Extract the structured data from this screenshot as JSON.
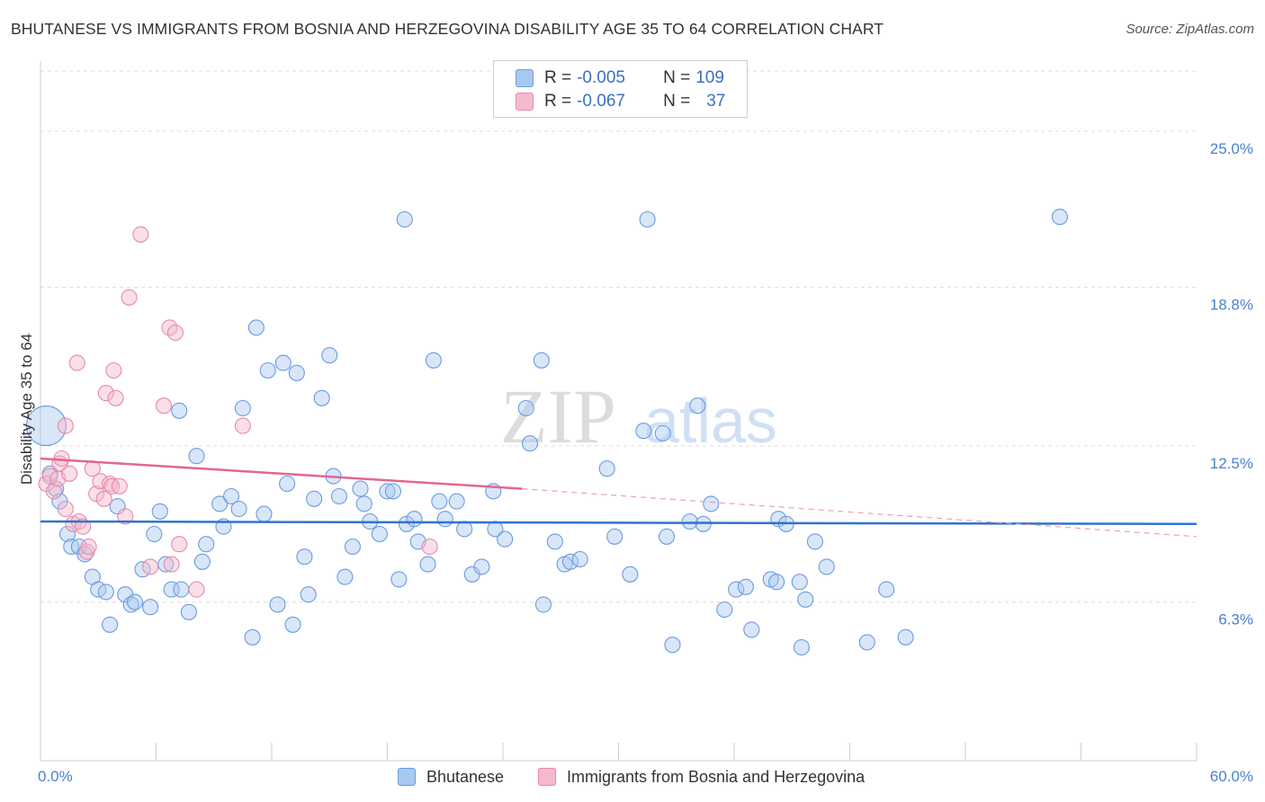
{
  "title": "BHUTANESE VS IMMIGRANTS FROM BOSNIA AND HERZEGOVINA DISABILITY AGE 35 TO 64 CORRELATION CHART",
  "source": "Source: ZipAtlas.com",
  "watermark": {
    "zip": "ZIP",
    "atlas": "atlas"
  },
  "legend": {
    "rows": [
      {
        "r_label": "R = ",
        "r_value": "-0.005",
        "n_label": "N = ",
        "n_value": "109",
        "color": "#a9c8f0",
        "border": "#6b9be0"
      },
      {
        "r_label": "R = ",
        "r_value": "-0.067",
        "n_label": "N = ",
        "n_value": "37",
        "color": "#f5b9cd",
        "border": "#e68aa8"
      }
    ]
  },
  "bottom_legend": [
    {
      "label": "Bhutanese",
      "color": "#a9c8f0",
      "border": "#6b9be0"
    },
    {
      "label": "Immigrants from Bosnia and Herzegovina",
      "color": "#f5b9cd",
      "border": "#e68aa8"
    }
  ],
  "chart_data": {
    "type": "scatter",
    "ylabel": "Disability Age 35 to 64",
    "xlim": [
      0,
      60
    ],
    "ylim": [
      0,
      27.5
    ],
    "x_tick_labels": [
      {
        "value": 0,
        "label": "0.0%"
      },
      {
        "value": 60,
        "label": "60.0%"
      }
    ],
    "x_minor_ticks": [
      0,
      6,
      12,
      18,
      24,
      30,
      36,
      42,
      48,
      54,
      60
    ],
    "y_ticks": [
      {
        "value": 6.3,
        "label": "6.3%"
      },
      {
        "value": 12.5,
        "label": "12.5%"
      },
      {
        "value": 18.8,
        "label": "18.8%"
      },
      {
        "value": 25.0,
        "label": "25.0%"
      }
    ],
    "grid": true,
    "series": [
      {
        "name": "Bhutanese",
        "color": "#6b9be0",
        "fill": "rgba(169,200,240,0.45)",
        "trend": {
          "x": [
            0,
            60
          ],
          "y": [
            9.5,
            9.4
          ]
        },
        "points": [
          [
            0.3,
            13.3,
            1
          ],
          [
            0.5,
            11.4,
            0
          ],
          [
            0.8,
            10.8,
            0
          ],
          [
            1.0,
            10.3,
            0
          ],
          [
            1.4,
            9.0,
            0
          ],
          [
            1.6,
            8.5,
            0
          ],
          [
            2.0,
            8.5,
            0
          ],
          [
            2.3,
            8.2,
            0
          ],
          [
            2.7,
            7.3,
            0
          ],
          [
            3.0,
            6.8,
            0
          ],
          [
            3.4,
            6.7,
            0
          ],
          [
            3.6,
            5.4,
            0
          ],
          [
            4.0,
            10.1,
            0
          ],
          [
            4.4,
            6.6,
            0
          ],
          [
            4.7,
            6.2,
            0
          ],
          [
            4.9,
            6.3,
            0
          ],
          [
            5.3,
            7.6,
            0
          ],
          [
            5.7,
            6.1,
            0
          ],
          [
            5.9,
            9.0,
            0
          ],
          [
            6.2,
            9.9,
            0
          ],
          [
            6.5,
            7.8,
            0
          ],
          [
            6.8,
            6.8,
            0
          ],
          [
            7.2,
            13.9,
            0
          ],
          [
            7.3,
            6.8,
            0
          ],
          [
            7.7,
            5.9,
            0
          ],
          [
            8.1,
            12.1,
            0
          ],
          [
            8.4,
            7.9,
            0
          ],
          [
            8.6,
            8.6,
            0
          ],
          [
            9.3,
            10.2,
            0
          ],
          [
            9.5,
            9.3,
            0
          ],
          [
            9.9,
            10.5,
            0
          ],
          [
            10.3,
            10.0,
            0
          ],
          [
            10.5,
            14.0,
            0
          ],
          [
            11.0,
            4.9,
            0
          ],
          [
            11.2,
            17.2,
            0
          ],
          [
            11.6,
            9.8,
            0
          ],
          [
            11.8,
            15.5,
            0
          ],
          [
            12.3,
            6.2,
            0
          ],
          [
            12.6,
            15.8,
            0
          ],
          [
            12.8,
            11.0,
            0
          ],
          [
            13.1,
            5.4,
            0
          ],
          [
            13.3,
            15.4,
            0
          ],
          [
            13.7,
            8.1,
            0
          ],
          [
            13.9,
            6.6,
            0
          ],
          [
            14.2,
            10.4,
            0
          ],
          [
            14.6,
            14.4,
            0
          ],
          [
            15.0,
            16.1,
            0
          ],
          [
            15.2,
            11.3,
            0
          ],
          [
            15.5,
            10.5,
            0
          ],
          [
            15.8,
            7.3,
            0
          ],
          [
            16.2,
            8.5,
            0
          ],
          [
            16.6,
            10.8,
            0
          ],
          [
            16.8,
            10.2,
            0
          ],
          [
            17.1,
            9.5,
            0
          ],
          [
            17.6,
            9.0,
            0
          ],
          [
            18.0,
            10.7,
            0
          ],
          [
            18.3,
            10.7,
            0
          ],
          [
            18.6,
            7.2,
            0
          ],
          [
            18.9,
            21.5,
            0
          ],
          [
            19.0,
            9.4,
            0
          ],
          [
            19.4,
            9.6,
            0
          ],
          [
            19.6,
            8.7,
            0
          ],
          [
            20.1,
            7.8,
            0
          ],
          [
            20.4,
            15.9,
            0
          ],
          [
            20.7,
            10.3,
            0
          ],
          [
            21.0,
            9.6,
            0
          ],
          [
            21.6,
            10.3,
            0
          ],
          [
            22.0,
            9.2,
            0
          ],
          [
            22.4,
            7.4,
            0
          ],
          [
            22.9,
            7.7,
            0
          ],
          [
            23.5,
            10.7,
            0
          ],
          [
            23.6,
            9.2,
            0
          ],
          [
            24.1,
            8.8,
            0
          ],
          [
            25.2,
            14.0,
            0
          ],
          [
            25.4,
            12.6,
            0
          ],
          [
            26.0,
            15.9,
            0
          ],
          [
            26.1,
            6.2,
            0
          ],
          [
            26.7,
            8.7,
            0
          ],
          [
            27.2,
            7.8,
            0
          ],
          [
            27.5,
            7.9,
            0
          ],
          [
            28.0,
            8.0,
            0
          ],
          [
            29.4,
            11.6,
            0
          ],
          [
            29.8,
            8.9,
            0
          ],
          [
            30.6,
            7.4,
            0
          ],
          [
            31.3,
            13.1,
            0
          ],
          [
            31.5,
            21.5,
            0
          ],
          [
            32.3,
            13.0,
            0
          ],
          [
            32.5,
            8.9,
            0
          ],
          [
            32.8,
            4.6,
            0
          ],
          [
            33.7,
            9.5,
            0
          ],
          [
            34.1,
            14.1,
            0
          ],
          [
            34.4,
            9.4,
            0
          ],
          [
            34.8,
            10.2,
            0
          ],
          [
            35.5,
            6.0,
            0
          ],
          [
            36.1,
            6.8,
            0
          ],
          [
            36.6,
            6.9,
            0
          ],
          [
            36.9,
            5.2,
            0
          ],
          [
            37.9,
            7.2,
            0
          ],
          [
            38.2,
            7.1,
            0
          ],
          [
            38.3,
            9.6,
            0
          ],
          [
            38.7,
            9.4,
            0
          ],
          [
            39.4,
            7.1,
            0
          ],
          [
            39.5,
            4.5,
            0
          ],
          [
            39.7,
            6.4,
            0
          ],
          [
            40.2,
            8.7,
            0
          ],
          [
            40.8,
            7.7,
            0
          ],
          [
            42.9,
            4.7,
            0
          ],
          [
            43.9,
            6.8,
            0
          ],
          [
            44.9,
            4.9,
            0
          ],
          [
            52.9,
            21.6,
            0
          ]
        ]
      },
      {
        "name": "Immigrants from Bosnia and Herzegovina",
        "color": "#e68aa8",
        "fill": "rgba(245,185,205,0.45)",
        "trend": {
          "x": [
            0,
            25
          ],
          "y": [
            12.0,
            10.8
          ],
          "x_dash": [
            25,
            60
          ],
          "y_dash": [
            10.8,
            8.9
          ]
        },
        "points": [
          [
            0.3,
            11.0,
            0
          ],
          [
            0.5,
            11.3,
            0
          ],
          [
            0.7,
            10.7,
            0
          ],
          [
            0.9,
            11.2,
            0
          ],
          [
            1.0,
            11.8,
            0
          ],
          [
            1.1,
            12.0,
            0
          ],
          [
            1.3,
            13.3,
            0
          ],
          [
            1.3,
            10.0,
            0
          ],
          [
            1.5,
            11.4,
            0
          ],
          [
            1.7,
            9.4,
            0
          ],
          [
            1.9,
            15.8,
            0
          ],
          [
            2.0,
            9.5,
            0
          ],
          [
            2.2,
            9.3,
            0
          ],
          [
            2.4,
            8.3,
            0
          ],
          [
            2.5,
            8.5,
            0
          ],
          [
            2.7,
            11.6,
            0
          ],
          [
            2.9,
            10.6,
            0
          ],
          [
            3.1,
            11.1,
            0
          ],
          [
            3.3,
            10.4,
            0
          ],
          [
            3.4,
            14.6,
            0
          ],
          [
            3.6,
            11.0,
            0
          ],
          [
            3.7,
            10.9,
            0
          ],
          [
            3.8,
            15.5,
            0
          ],
          [
            3.9,
            14.4,
            0
          ],
          [
            4.1,
            10.9,
            0
          ],
          [
            4.4,
            9.7,
            0
          ],
          [
            4.6,
            18.4,
            0
          ],
          [
            5.2,
            20.9,
            0
          ],
          [
            5.7,
            7.7,
            0
          ],
          [
            6.4,
            14.1,
            0
          ],
          [
            6.7,
            17.2,
            0
          ],
          [
            6.8,
            7.8,
            0
          ],
          [
            7.0,
            17.0,
            0
          ],
          [
            7.2,
            8.6,
            0
          ],
          [
            8.1,
            6.8,
            0
          ],
          [
            10.5,
            13.3,
            0
          ],
          [
            20.2,
            8.5,
            0
          ]
        ]
      }
    ]
  }
}
